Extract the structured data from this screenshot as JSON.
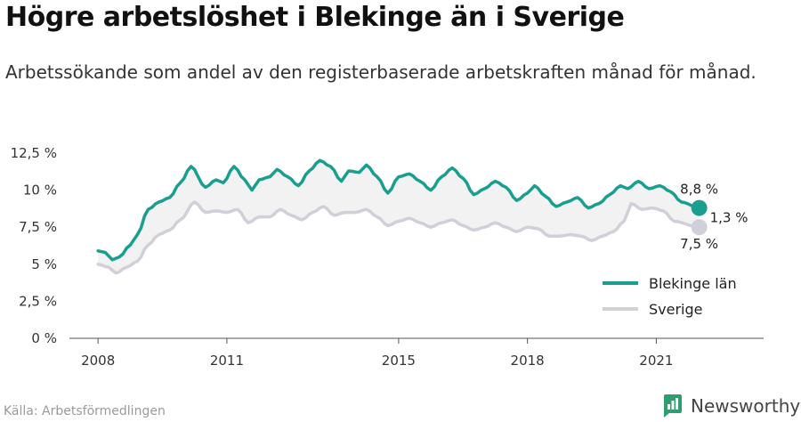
{
  "title": "Högre arbetslöshet i Blekinge än i Sverige",
  "subtitle": "Arbetssökande som andel av den registerbaserade arbetskraften månad för månad.",
  "source": "Källa: Arbetsförmedlingen",
  "brand": "Newsworthy",
  "colors": {
    "blekinge": "#1a9e8f",
    "sverige": "#cfd0d8",
    "fill": "#f2f2f2",
    "axis": "#555555",
    "brand_green": "#2e9e6e"
  },
  "chart_data": {
    "type": "line",
    "x_start": "2008-01",
    "x_end": "2022-01",
    "xlim": [
      "2007-05",
      "2023-07"
    ],
    "ylim": [
      0,
      12.5
    ],
    "y_ticks": [
      0,
      2.5,
      5,
      7.5,
      10,
      12.5
    ],
    "y_tick_labels": [
      "0 %",
      "2,5 %",
      "5 %",
      "7,5 %",
      "10 %",
      "12,5 %"
    ],
    "x_ticks": [
      "2008",
      "2011",
      "2015",
      "2018",
      "2021"
    ],
    "legend_position": "bottom-right",
    "series": [
      {
        "name": "Blekinge län",
        "key": "blekinge",
        "anchors": [
          [
            "2008-01",
            5.9
          ],
          [
            "2008-03",
            5.8
          ],
          [
            "2008-05",
            5.3
          ],
          [
            "2008-07",
            5.5
          ],
          [
            "2008-10",
            6.3
          ],
          [
            "2008-12",
            7.0
          ],
          [
            "2009-03",
            8.7
          ],
          [
            "2009-06",
            9.2
          ],
          [
            "2009-09",
            9.5
          ],
          [
            "2009-12",
            10.5
          ],
          [
            "2010-03",
            11.6
          ],
          [
            "2010-07",
            10.2
          ],
          [
            "2010-10",
            10.7
          ],
          [
            "2010-12",
            10.5
          ],
          [
            "2011-03",
            11.6
          ],
          [
            "2011-06",
            10.7
          ],
          [
            "2011-08",
            10.0
          ],
          [
            "2011-10",
            10.7
          ],
          [
            "2012-01",
            10.9
          ],
          [
            "2012-03",
            11.4
          ],
          [
            "2012-06",
            10.9
          ],
          [
            "2012-09",
            10.3
          ],
          [
            "2012-12",
            11.3
          ],
          [
            "2013-03",
            12.0
          ],
          [
            "2013-06",
            11.6
          ],
          [
            "2013-09",
            10.6
          ],
          [
            "2013-11",
            11.3
          ],
          [
            "2014-02",
            11.2
          ],
          [
            "2014-04",
            11.7
          ],
          [
            "2014-07",
            10.9
          ],
          [
            "2014-10",
            9.8
          ],
          [
            "2015-01",
            10.9
          ],
          [
            "2015-04",
            11.1
          ],
          [
            "2015-07",
            10.6
          ],
          [
            "2015-10",
            10.0
          ],
          [
            "2016-01",
            10.9
          ],
          [
            "2016-04",
            11.5
          ],
          [
            "2016-07",
            10.8
          ],
          [
            "2016-10",
            9.7
          ],
          [
            "2017-01",
            10.1
          ],
          [
            "2017-04",
            10.6
          ],
          [
            "2017-07",
            10.2
          ],
          [
            "2017-10",
            9.3
          ],
          [
            "2018-01",
            9.8
          ],
          [
            "2018-03",
            10.3
          ],
          [
            "2018-06",
            9.6
          ],
          [
            "2018-09",
            8.9
          ],
          [
            "2018-12",
            9.2
          ],
          [
            "2019-03",
            9.5
          ],
          [
            "2019-06",
            8.8
          ],
          [
            "2019-09",
            9.1
          ],
          [
            "2019-12",
            9.7
          ],
          [
            "2020-03",
            10.3
          ],
          [
            "2020-05",
            10.1
          ],
          [
            "2020-08",
            10.6
          ],
          [
            "2020-11",
            10.1
          ],
          [
            "2021-02",
            10.3
          ],
          [
            "2021-05",
            9.9
          ],
          [
            "2021-08",
            9.2
          ],
          [
            "2022-01",
            8.8
          ]
        ]
      },
      {
        "name": "Sverige",
        "key": "sverige",
        "anchors": [
          [
            "2008-01",
            5.0
          ],
          [
            "2008-04",
            4.8
          ],
          [
            "2008-06",
            4.4
          ],
          [
            "2008-09",
            4.8
          ],
          [
            "2008-12",
            5.2
          ],
          [
            "2009-03",
            6.3
          ],
          [
            "2009-06",
            7.0
          ],
          [
            "2009-09",
            7.3
          ],
          [
            "2009-12",
            8.0
          ],
          [
            "2010-04",
            9.2
          ],
          [
            "2010-07",
            8.5
          ],
          [
            "2010-10",
            8.6
          ],
          [
            "2011-01",
            8.5
          ],
          [
            "2011-04",
            8.7
          ],
          [
            "2011-07",
            7.8
          ],
          [
            "2011-10",
            8.2
          ],
          [
            "2012-01",
            8.2
          ],
          [
            "2012-04",
            8.7
          ],
          [
            "2012-07",
            8.3
          ],
          [
            "2012-10",
            8.0
          ],
          [
            "2013-01",
            8.5
          ],
          [
            "2013-04",
            8.9
          ],
          [
            "2013-07",
            8.3
          ],
          [
            "2013-10",
            8.5
          ],
          [
            "2014-01",
            8.5
          ],
          [
            "2014-04",
            8.7
          ],
          [
            "2014-07",
            8.2
          ],
          [
            "2014-10",
            7.6
          ],
          [
            "2015-01",
            7.9
          ],
          [
            "2015-04",
            8.1
          ],
          [
            "2015-07",
            7.8
          ],
          [
            "2015-10",
            7.5
          ],
          [
            "2016-01",
            7.8
          ],
          [
            "2016-04",
            8.0
          ],
          [
            "2016-07",
            7.6
          ],
          [
            "2016-10",
            7.3
          ],
          [
            "2017-01",
            7.5
          ],
          [
            "2017-04",
            7.8
          ],
          [
            "2017-07",
            7.5
          ],
          [
            "2017-10",
            7.2
          ],
          [
            "2018-01",
            7.5
          ],
          [
            "2018-04",
            7.4
          ],
          [
            "2018-07",
            6.9
          ],
          [
            "2018-10",
            6.9
          ],
          [
            "2019-01",
            7.0
          ],
          [
            "2019-04",
            6.9
          ],
          [
            "2019-07",
            6.6
          ],
          [
            "2019-10",
            6.9
          ],
          [
            "2020-01",
            7.2
          ],
          [
            "2020-04",
            7.9
          ],
          [
            "2020-06",
            9.1
          ],
          [
            "2020-09",
            8.7
          ],
          [
            "2020-12",
            8.8
          ],
          [
            "2021-03",
            8.6
          ],
          [
            "2021-06",
            7.9
          ],
          [
            "2022-01",
            7.5
          ]
        ]
      }
    ],
    "end_labels": {
      "blekinge": "8,8 %",
      "sverige": "7,5 %",
      "difference": "1,3 %"
    }
  }
}
